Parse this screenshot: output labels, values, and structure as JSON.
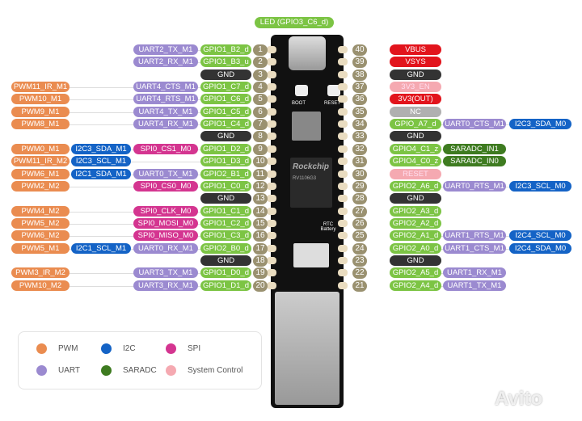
{
  "colors": {
    "gpio": "#7cc444",
    "uart": "#9b8ad0",
    "pwm": "#ea8c50",
    "i2c": "#1463c6",
    "spi": "#d43590",
    "saradc": "#3e7b20",
    "gnd": "#333333",
    "power": "#e2141c",
    "sys": "#f5a9b1",
    "nc": "#b0b0b0"
  },
  "top_label": "LED (GPIO3_C6_d)",
  "board": {
    "chip_brand": "Rockchip",
    "chip_text": "RV1106G3",
    "boot": "BOOT",
    "reset": "RESET",
    "rtc": "RTC Battery"
  },
  "left_pins": [
    {
      "pin": "1",
      "cells": [
        [
          "GPIO1_B2_d",
          "gpio"
        ],
        [
          "UART2_TX_M1",
          "uart"
        ]
      ]
    },
    {
      "pin": "2",
      "cells": [
        [
          "GPIO1_B3_u",
          "gpio"
        ],
        [
          "UART2_RX_M1",
          "uart"
        ]
      ]
    },
    {
      "pin": "3",
      "cells": [
        [
          "GND",
          "gnd"
        ]
      ]
    },
    {
      "pin": "4",
      "cells": [
        [
          "GPIO1_C7_d",
          "gpio"
        ],
        [
          "UART4_CTS_M1",
          "uart"
        ],
        null,
        [
          "PWM11_IR_M1",
          "pwm"
        ]
      ]
    },
    {
      "pin": "5",
      "cells": [
        [
          "GPIO1_C6_d",
          "gpio"
        ],
        [
          "UART4_RTS_M1",
          "uart"
        ],
        null,
        [
          "PWM10_M1",
          "pwm"
        ]
      ]
    },
    {
      "pin": "6",
      "cells": [
        [
          "GPIO1_C5_d",
          "gpio"
        ],
        [
          "UART4_TX_M1",
          "uart"
        ],
        null,
        [
          "PWM9_M1",
          "pwm"
        ]
      ]
    },
    {
      "pin": "7",
      "cells": [
        [
          "GPIO1_C4_d",
          "gpio"
        ],
        [
          "UART4_RX_M1",
          "uart"
        ],
        null,
        [
          "PWM8_M1",
          "pwm"
        ]
      ]
    },
    {
      "pin": "8",
      "cells": [
        [
          "GND",
          "gnd"
        ]
      ]
    },
    {
      "pin": "9",
      "cells": [
        [
          "GPIO1_D2_d",
          "gpio"
        ],
        [
          "SPI0_CS1_M0",
          "spi"
        ],
        [
          "I2C3_SDA_M1",
          "i2c"
        ],
        [
          "PWM0_M1",
          "pwm"
        ]
      ]
    },
    {
      "pin": "10",
      "cells": [
        [
          "GPIO1_D3_d",
          "gpio"
        ],
        null,
        [
          "I2C3_SCL_M1",
          "i2c"
        ],
        [
          "PWM11_IR_M2",
          "pwm"
        ]
      ]
    },
    {
      "pin": "11",
      "cells": [
        [
          "GPIO2_B1_d",
          "gpio"
        ],
        [
          "UART0_TX_M1",
          "uart"
        ],
        [
          "I2C1_SDA_M1",
          "i2c"
        ],
        [
          "PWM6_M1",
          "pwm"
        ]
      ]
    },
    {
      "pin": "12",
      "cells": [
        [
          "GPIO1_C0_d",
          "gpio"
        ],
        [
          "SPI0_CS0_M0",
          "spi"
        ],
        null,
        [
          "PWM2_M2",
          "pwm"
        ]
      ]
    },
    {
      "pin": "13",
      "cells": [
        [
          "GND",
          "gnd"
        ]
      ]
    },
    {
      "pin": "14",
      "cells": [
        [
          "GPIO1_C1_d",
          "gpio"
        ],
        [
          "SPI0_CLK_M0",
          "spi"
        ],
        null,
        [
          "PWM4_M2",
          "pwm"
        ]
      ]
    },
    {
      "pin": "15",
      "cells": [
        [
          "GPIO1_C2_d",
          "gpio"
        ],
        [
          "SPI0_MOSI_M0",
          "spi"
        ],
        null,
        [
          "PWM5_M2",
          "pwm"
        ]
      ]
    },
    {
      "pin": "16",
      "cells": [
        [
          "GPIO1_C3_d",
          "gpio"
        ],
        [
          "SPI0_MISO_M0",
          "spi"
        ],
        null,
        [
          "PWM6_M2",
          "pwm"
        ]
      ]
    },
    {
      "pin": "17",
      "cells": [
        [
          "GPIO2_B0_d",
          "gpio"
        ],
        [
          "UART0_RX_M1",
          "uart"
        ],
        [
          "I2C1_SCL_M1",
          "i2c"
        ],
        [
          "PWM5_M1",
          "pwm"
        ]
      ]
    },
    {
      "pin": "18",
      "cells": [
        [
          "GND",
          "gnd"
        ]
      ]
    },
    {
      "pin": "19",
      "cells": [
        [
          "GPIO1_D0_d",
          "gpio"
        ],
        [
          "UART3_TX_M1",
          "uart"
        ],
        null,
        [
          "PWM3_IR_M2",
          "pwm"
        ]
      ]
    },
    {
      "pin": "20",
      "cells": [
        [
          "GPIO1_D1_d",
          "gpio"
        ],
        [
          "UART3_RX_M1",
          "uart"
        ],
        null,
        [
          "PWM10_M2",
          "pwm"
        ]
      ]
    }
  ],
  "right_pins": [
    {
      "pin": "40",
      "cells": [
        [
          "VBUS",
          "power"
        ]
      ]
    },
    {
      "pin": "39",
      "cells": [
        [
          "VSYS",
          "power"
        ]
      ]
    },
    {
      "pin": "38",
      "cells": [
        [
          "GND",
          "gnd"
        ]
      ]
    },
    {
      "pin": "37",
      "cells": [
        [
          "3V3_EN",
          "sys"
        ]
      ]
    },
    {
      "pin": "36",
      "cells": [
        [
          "3V3(OUT)",
          "power"
        ]
      ]
    },
    {
      "pin": "35",
      "cells": [
        [
          "NC",
          "nc"
        ]
      ]
    },
    {
      "pin": "34",
      "cells": [
        [
          "GPIO_A7_d",
          "gpio"
        ],
        [
          "UART0_CTS_M1",
          "uart"
        ],
        [
          "I2C3_SDA_M0",
          "i2c"
        ]
      ]
    },
    {
      "pin": "33",
      "cells": [
        [
          "GND",
          "gnd"
        ]
      ]
    },
    {
      "pin": "32",
      "cells": [
        [
          "GPIO4_C1_z",
          "gpio"
        ],
        [
          "SARADC_IN1",
          "saradc"
        ]
      ]
    },
    {
      "pin": "31",
      "cells": [
        [
          "GPIO4_C0_z",
          "gpio"
        ],
        [
          "SARADC_IN0",
          "saradc"
        ]
      ]
    },
    {
      "pin": "30",
      "cells": [
        [
          "RESET",
          "sys"
        ]
      ]
    },
    {
      "pin": "29",
      "cells": [
        [
          "GPIO2_A6_d",
          "gpio"
        ],
        [
          "UART0_RTS_M1",
          "uart"
        ],
        [
          "I2C3_SCL_M0",
          "i2c"
        ]
      ]
    },
    {
      "pin": "28",
      "cells": [
        [
          "GND",
          "gnd"
        ]
      ]
    },
    {
      "pin": "27",
      "cells": [
        [
          "GPIO2_A3_d",
          "gpio"
        ]
      ]
    },
    {
      "pin": "26",
      "cells": [
        [
          "GPIO2_A2_d",
          "gpio"
        ]
      ]
    },
    {
      "pin": "25",
      "cells": [
        [
          "GPIO2_A1_d",
          "gpio"
        ],
        [
          "UART1_RTS_M1",
          "uart"
        ],
        [
          "I2C4_SCL_M0",
          "i2c"
        ]
      ]
    },
    {
      "pin": "24",
      "cells": [
        [
          "GPIO2_A0_d",
          "gpio"
        ],
        [
          "UART1_CTS_M1",
          "uart"
        ],
        [
          "I2C4_SDA_M0",
          "i2c"
        ]
      ]
    },
    {
      "pin": "23",
      "cells": [
        [
          "GND",
          "gnd"
        ]
      ]
    },
    {
      "pin": "22",
      "cells": [
        [
          "GPIO2_A5_d",
          "gpio"
        ],
        [
          "UART1_RX_M1",
          "uart"
        ]
      ]
    },
    {
      "pin": "21",
      "cells": [
        [
          "GPIO2_A4_d",
          "gpio"
        ],
        [
          "UART1_TX_M1",
          "uart"
        ]
      ]
    }
  ],
  "legend": [
    {
      "label": "PWM",
      "kind": "pwm"
    },
    {
      "label": "I2C",
      "kind": "i2c"
    },
    {
      "label": "SPI",
      "kind": "spi"
    },
    {
      "label": "UART",
      "kind": "uart"
    },
    {
      "label": "SARADC",
      "kind": "saradc"
    },
    {
      "label": "System Control",
      "kind": "sys"
    }
  ],
  "watermark": "Avito"
}
